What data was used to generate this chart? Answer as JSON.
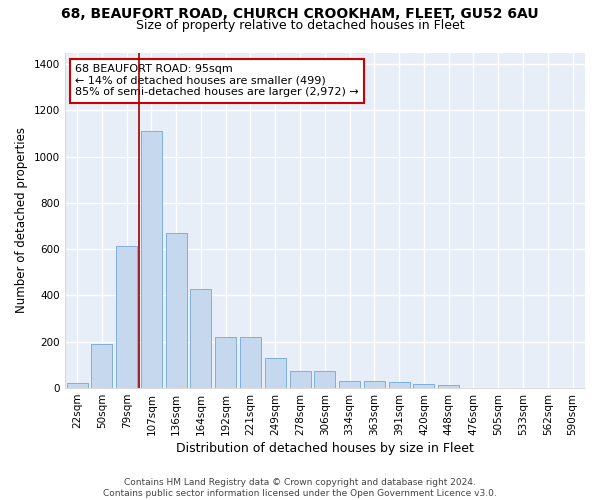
{
  "title_line1": "68, BEAUFORT ROAD, CHURCH CROOKHAM, FLEET, GU52 6AU",
  "title_line2": "Size of property relative to detached houses in Fleet",
  "xlabel": "Distribution of detached houses by size in Fleet",
  "ylabel": "Number of detached properties",
  "bar_color": "#c5d8ed",
  "bar_edge_color": "#5b9bd5",
  "background_color": "#e8eef8",
  "grid_color": "#ffffff",
  "categories": [
    "22sqm",
    "50sqm",
    "79sqm",
    "107sqm",
    "136sqm",
    "164sqm",
    "192sqm",
    "221sqm",
    "249sqm",
    "278sqm",
    "306sqm",
    "334sqm",
    "363sqm",
    "391sqm",
    "420sqm",
    "448sqm",
    "476sqm",
    "505sqm",
    "533sqm",
    "562sqm",
    "590sqm"
  ],
  "values": [
    20,
    190,
    615,
    1110,
    670,
    430,
    220,
    220,
    130,
    75,
    75,
    32,
    32,
    25,
    18,
    12,
    0,
    0,
    0,
    0,
    0
  ],
  "ylim": [
    0,
    1450
  ],
  "yticks": [
    0,
    200,
    400,
    600,
    800,
    1000,
    1200,
    1400
  ],
  "vline_color": "#9b0000",
  "annotation_text": "68 BEAUFORT ROAD: 95sqm\n← 14% of detached houses are smaller (499)\n85% of semi-detached houses are larger (2,972) →",
  "annotation_box_color": "#ffffff",
  "annotation_box_edge": "#cc0000",
  "footer_text": "Contains HM Land Registry data © Crown copyright and database right 2024.\nContains public sector information licensed under the Open Government Licence v3.0.",
  "title_fontsize": 10,
  "subtitle_fontsize": 9,
  "tick_fontsize": 7.5,
  "ylabel_fontsize": 8.5,
  "xlabel_fontsize": 9,
  "annotation_fontsize": 8,
  "footer_fontsize": 6.5
}
